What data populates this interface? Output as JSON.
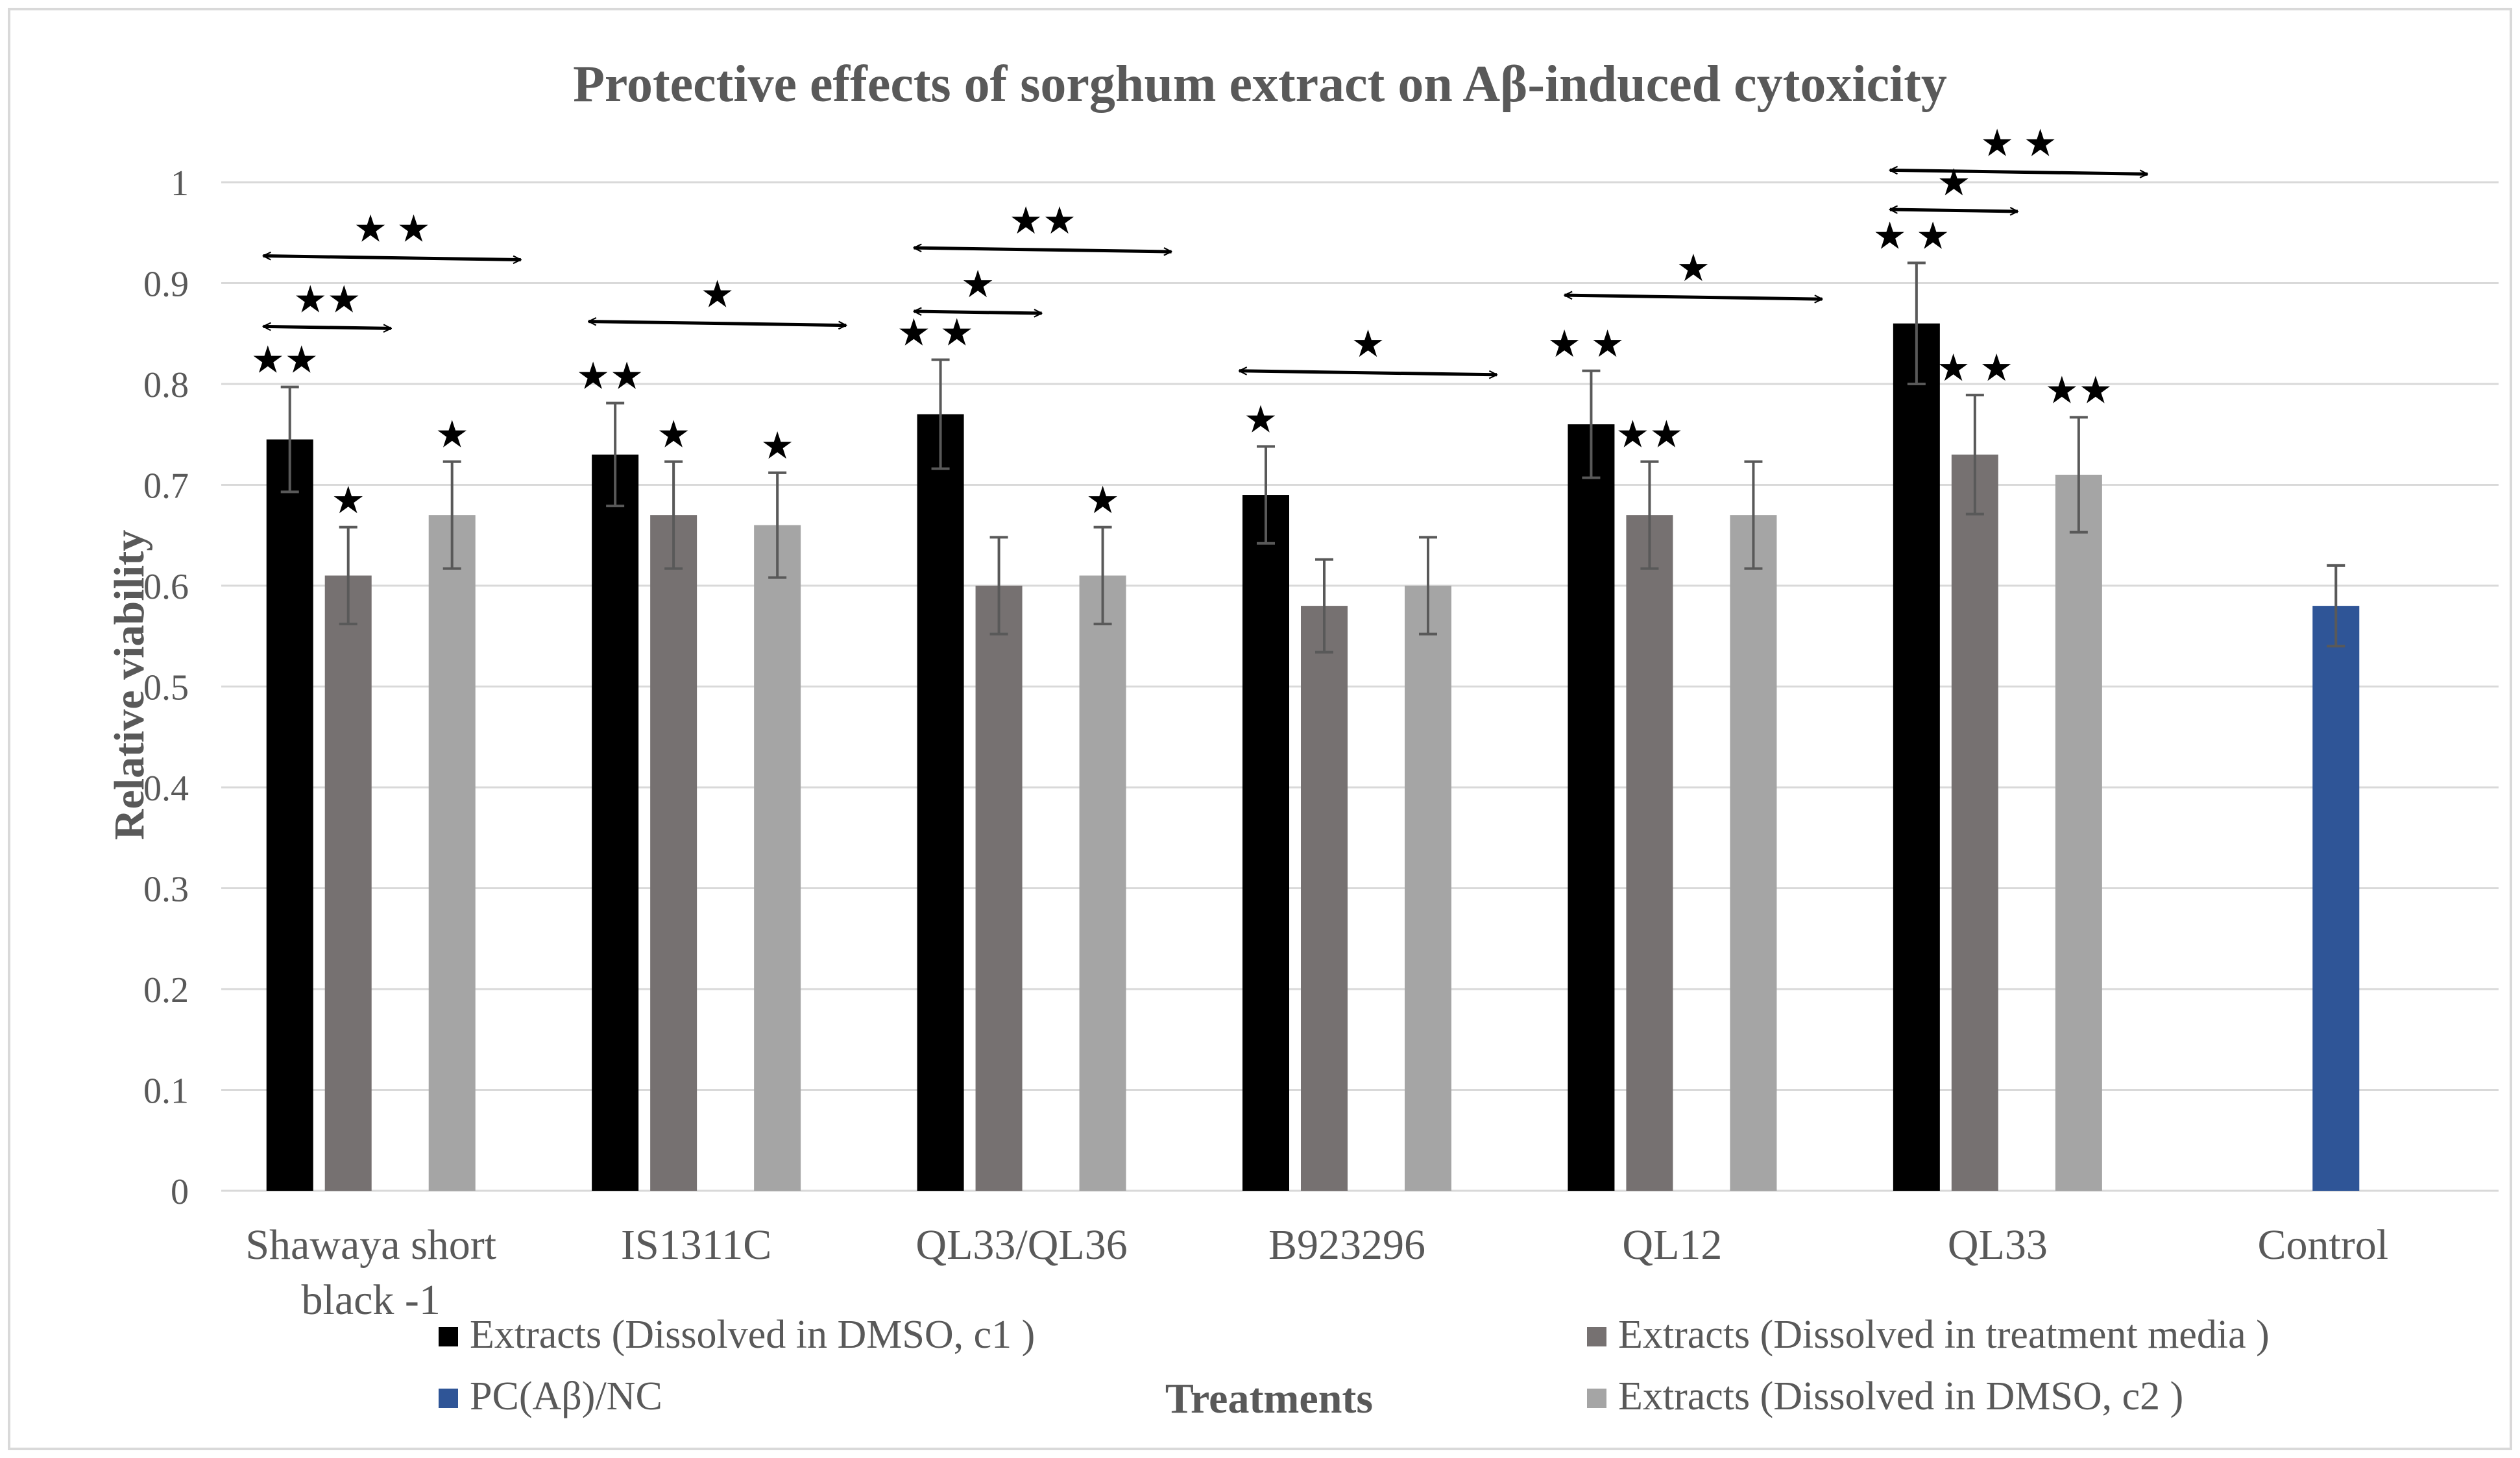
{
  "chart_data": {
    "type": "bar",
    "title": "Protective effects of sorghum extract on Aβ-induced cytoxicity",
    "xlabel": "Treatments",
    "ylabel": "Relative viability",
    "ylim": [
      0,
      1
    ],
    "yticks": [
      "0",
      "0.1",
      "0.2",
      "0.3",
      "0.4",
      "0.5",
      "0.6",
      "0.7",
      "0.8",
      "0.9",
      "1"
    ],
    "grid": true,
    "categories": [
      [
        "Shawaya short",
        "black -1"
      ],
      [
        "IS1311C"
      ],
      [
        "QL33/QL36"
      ],
      [
        "B923296"
      ],
      [
        "QL12"
      ],
      [
        "QL33"
      ],
      [
        "Control"
      ]
    ],
    "series": [
      {
        "name": "Extracts  (Dissolved in DMSO, c1 )",
        "color": "#000000",
        "values": [
          0.745,
          0.73,
          0.77,
          0.69,
          0.76,
          0.86,
          null
        ],
        "errors": [
          0.052,
          0.051,
          0.054,
          0.048,
          0.053,
          0.06,
          null
        ],
        "stars": [
          "★★",
          "★★",
          "★ ★",
          "★",
          "★ ★",
          "★ ★",
          ""
        ]
      },
      {
        "name": "Extracts (Dissolved in treatment media )",
        "color": "#767171",
        "values": [
          0.61,
          0.67,
          0.6,
          0.58,
          0.67,
          0.73,
          null
        ],
        "errors": [
          0.048,
          0.053,
          0.048,
          0.046,
          0.053,
          0.059,
          null
        ],
        "stars": [
          "★",
          "★",
          "",
          "",
          "★★",
          "★ ★",
          ""
        ]
      },
      {
        "name": "Extracts  (Dissolved in DMSO, c2 )",
        "color": "#a5a5a5",
        "values": [
          0.67,
          0.66,
          0.61,
          0.6,
          0.67,
          0.71,
          null
        ],
        "errors": [
          0.053,
          0.052,
          0.048,
          0.048,
          0.053,
          0.057,
          null
        ],
        "stars": [
          "★",
          "★",
          "★",
          "",
          "",
          "★★",
          ""
        ]
      },
      {
        "name": "PC(Aβ)/NC",
        "color": "#2f5597",
        "values": [
          null,
          null,
          null,
          null,
          null,
          null,
          0.58
        ],
        "errors": [
          null,
          null,
          null,
          null,
          null,
          null,
          0.04
        ],
        "stars": [
          "",
          "",
          "",
          "",
          "",
          "",
          ""
        ]
      }
    ],
    "comparisons": [
      {
        "category": 0,
        "from": 0,
        "to": 2,
        "y": 0.927,
        "label": "★ ★"
      },
      {
        "category": 0,
        "from": 0,
        "to": 1,
        "y": 0.857,
        "label": "★★"
      },
      {
        "category": 1,
        "from": 0,
        "to": 2,
        "y": 0.862,
        "label": "★"
      },
      {
        "category": 2,
        "from": 0,
        "to": 2,
        "y": 0.935,
        "label": "★★"
      },
      {
        "category": 2,
        "from": 0,
        "to": 1,
        "y": 0.872,
        "label": "★"
      },
      {
        "category": 3,
        "from": 0,
        "to": 2,
        "y": 0.813,
        "label": "★"
      },
      {
        "category": 4,
        "from": 0,
        "to": 2,
        "y": 0.888,
        "label": "★"
      },
      {
        "category": 5,
        "from": 0,
        "to": 2,
        "y": 1.012,
        "label": "★ ★"
      },
      {
        "category": 5,
        "from": 0,
        "to": 1,
        "y": 0.973,
        "label": "★"
      }
    ],
    "legend": {
      "placement": "bottom",
      "order": [
        0,
        1,
        3,
        2
      ]
    }
  }
}
